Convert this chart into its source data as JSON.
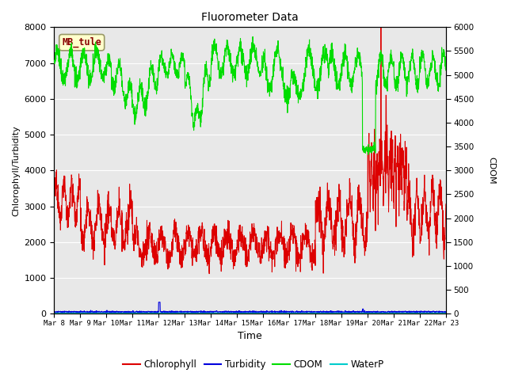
{
  "title": "Fluorometer Data",
  "xlabel": "Time",
  "ylabel_left": "Chlorophyll/Turbidity",
  "ylabel_right": "CDOM",
  "station_label": "MB_tule",
  "ylim_left": [
    0,
    8000
  ],
  "ylim_right": [
    0,
    6000
  ],
  "yticks_left": [
    0,
    1000,
    2000,
    3000,
    4000,
    5000,
    6000,
    7000,
    8000
  ],
  "yticks_right": [
    0,
    500,
    1000,
    1500,
    2000,
    2500,
    3000,
    3500,
    4000,
    4500,
    5000,
    5500,
    6000
  ],
  "xtick_labels": [
    "Mar 8",
    "Mar 9",
    "Mar 10",
    "Mar 11",
    "Mar 12",
    "Mar 13",
    "Mar 14",
    "Mar 15",
    "Mar 16",
    "Mar 17",
    "Mar 18",
    "Mar 19",
    "Mar 20",
    "Mar 21",
    "Mar 22",
    "Mar 23"
  ],
  "colors": {
    "chlorophyll": "#dd0000",
    "turbidity": "#0000dd",
    "cdom": "#00dd00",
    "waterp": "#00cccc",
    "background": "#e8e8e8",
    "station_box_face": "#ffffcc",
    "station_box_edge": "#999966",
    "station_text": "#880000",
    "grid": "#ffffff"
  },
  "legend_entries": [
    "Chlorophyll",
    "Turbidity",
    "CDOM",
    "WaterP"
  ]
}
